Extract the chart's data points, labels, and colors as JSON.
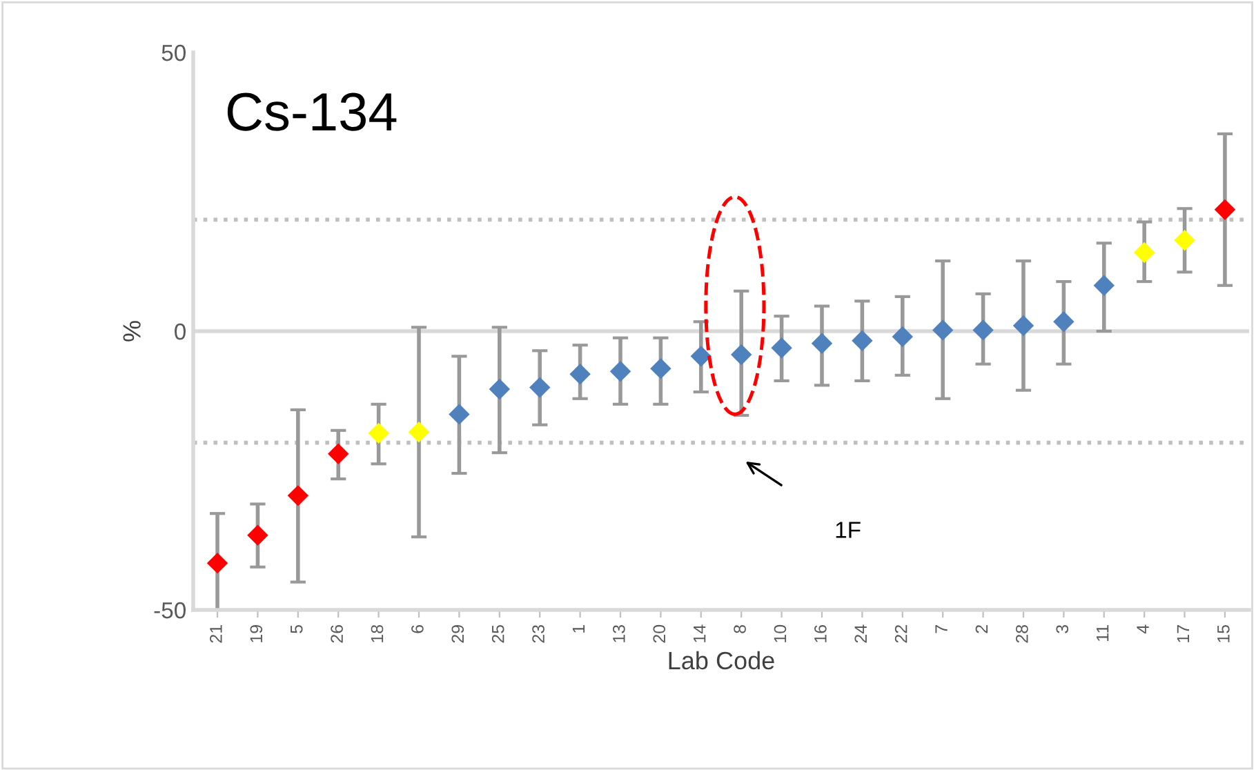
{
  "chart_data": {
    "type": "scatter",
    "title": "Cs-134",
    "xlabel": "Lab Code",
    "ylabel": "%",
    "categories": [
      "21",
      "19",
      "5",
      "26",
      "18",
      "6",
      "29",
      "25",
      "23",
      "1",
      "13",
      "20",
      "14",
      "8",
      "10",
      "16",
      "24",
      "22",
      "7",
      "2",
      "28",
      "3",
      "11",
      "4",
      "17",
      "15"
    ],
    "values": [
      -41.6,
      -36.6,
      -29.5,
      -22,
      -18.3,
      -18.1,
      -14.9,
      -10.4,
      -10.1,
      -7.7,
      -7.2,
      -6.7,
      -4.5,
      -4.2,
      -3.0,
      -2.2,
      -1.7,
      -1.0,
      0.2,
      0.2,
      1.0,
      1.7,
      8.2,
      14.1,
      16.3,
      21.8
    ],
    "errors": [
      [
        -50,
        -32.7
      ],
      [
        -42.3,
        -31
      ],
      [
        -45,
        -14.1
      ],
      [
        -26.5,
        -17.8
      ],
      [
        -23.8,
        -13.1
      ],
      [
        -36.9,
        0.7
      ],
      [
        -25.5,
        -4.5
      ],
      [
        -21.8,
        0.7
      ],
      [
        -16.8,
        -3.5
      ],
      [
        -12.1,
        -2.5
      ],
      [
        -13.1,
        -1.2
      ],
      [
        -13.1,
        -1.2
      ],
      [
        -10.9,
        1.7
      ],
      [
        -15.1,
        7.2
      ],
      [
        -8.9,
        2.7
      ],
      [
        -9.7,
        4.5
      ],
      [
        -8.9,
        5.4
      ],
      [
        -7.9,
        6.2
      ],
      [
        -12.1,
        12.6
      ],
      [
        -5.9,
        6.7
      ],
      [
        -10.6,
        12.6
      ],
      [
        -5.9,
        8.9
      ],
      [
        0,
        15.8
      ],
      [
        8.9,
        19.6
      ],
      [
        10.6,
        22
      ],
      [
        8.2,
        35.4
      ]
    ],
    "colors": [
      "#ff0000",
      "#ff0000",
      "#ff0000",
      "#ff0000",
      "#ffff00",
      "#ffff00",
      "#4f81bd",
      "#4f81bd",
      "#4f81bd",
      "#4f81bd",
      "#4f81bd",
      "#4f81bd",
      "#4f81bd",
      "#4f81bd",
      "#4f81bd",
      "#4f81bd",
      "#4f81bd",
      "#4f81bd",
      "#4f81bd",
      "#4f81bd",
      "#4f81bd",
      "#4f81bd",
      "#4f81bd",
      "#ffff00",
      "#ffff00",
      "#ff0000"
    ],
    "marker": "diamond",
    "ylim": [
      -50,
      50
    ],
    "yticks": [
      -50,
      0,
      50
    ],
    "ref_lines": [
      {
        "axis": "y",
        "value": 20,
        "line_style": "dotted",
        "color": "#bfbfbf"
      },
      {
        "axis": "y",
        "value": -20,
        "line_style": "dotted",
        "color": "#bfbfbf"
      },
      {
        "axis": "y",
        "value": 0,
        "line_style": "solid",
        "color": "#d9d9d9"
      }
    ],
    "annotations": [
      "1F"
    ],
    "grid": false,
    "legend": false
  }
}
